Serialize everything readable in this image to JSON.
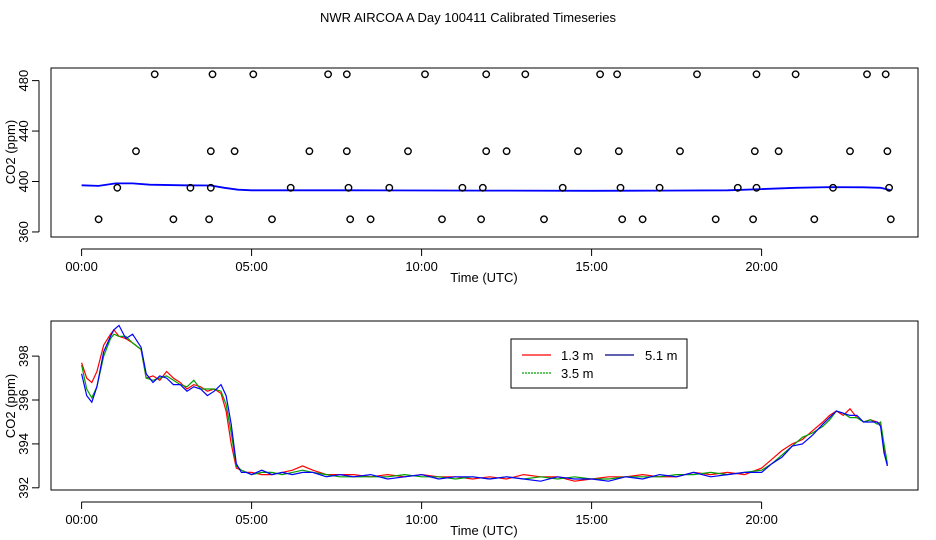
{
  "title": "NWR AIRCOA A  Day 100411  Calibrated Timeseries",
  "chart_data": [
    {
      "type": "scatter",
      "xlabel": "Time (UTC)",
      "ylabel": "CO2 (ppm)",
      "xlim": [
        -0.9,
        24.6
      ],
      "ylim": [
        356,
        490
      ],
      "x_ticks": [
        0,
        5,
        10,
        15,
        20
      ],
      "x_tick_labels": [
        "00:00",
        "05:00",
        "10:00",
        "15:00",
        "20:00"
      ],
      "y_ticks": [
        360,
        400,
        440,
        480
      ],
      "y_tick_labels": [
        "360",
        "400",
        "440",
        "480"
      ],
      "points": [
        {
          "x": 2.15,
          "y": 485
        },
        {
          "x": 3.85,
          "y": 485
        },
        {
          "x": 5.05,
          "y": 485
        },
        {
          "x": 7.25,
          "y": 485
        },
        {
          "x": 7.8,
          "y": 485
        },
        {
          "x": 10.1,
          "y": 485
        },
        {
          "x": 11.9,
          "y": 485
        },
        {
          "x": 13.05,
          "y": 485
        },
        {
          "x": 15.25,
          "y": 485
        },
        {
          "x": 15.75,
          "y": 485
        },
        {
          "x": 18.1,
          "y": 485
        },
        {
          "x": 19.85,
          "y": 485
        },
        {
          "x": 21.0,
          "y": 485
        },
        {
          "x": 23.1,
          "y": 485
        },
        {
          "x": 23.65,
          "y": 485
        },
        {
          "x": 1.6,
          "y": 424
        },
        {
          "x": 3.8,
          "y": 424
        },
        {
          "x": 4.5,
          "y": 424
        },
        {
          "x": 6.7,
          "y": 424
        },
        {
          "x": 7.8,
          "y": 424
        },
        {
          "x": 9.6,
          "y": 424
        },
        {
          "x": 11.9,
          "y": 424
        },
        {
          "x": 12.5,
          "y": 424
        },
        {
          "x": 14.6,
          "y": 424
        },
        {
          "x": 15.8,
          "y": 424
        },
        {
          "x": 17.6,
          "y": 424
        },
        {
          "x": 19.8,
          "y": 424
        },
        {
          "x": 20.5,
          "y": 424
        },
        {
          "x": 22.6,
          "y": 424
        },
        {
          "x": 23.7,
          "y": 424
        },
        {
          "x": 1.05,
          "y": 395
        },
        {
          "x": 3.2,
          "y": 395
        },
        {
          "x": 3.8,
          "y": 395
        },
        {
          "x": 6.15,
          "y": 395
        },
        {
          "x": 7.85,
          "y": 395
        },
        {
          "x": 9.05,
          "y": 395
        },
        {
          "x": 11.2,
          "y": 395
        },
        {
          "x": 11.8,
          "y": 395
        },
        {
          "x": 14.15,
          "y": 395
        },
        {
          "x": 15.85,
          "y": 395
        },
        {
          "x": 17.0,
          "y": 395
        },
        {
          "x": 19.3,
          "y": 395
        },
        {
          "x": 19.85,
          "y": 395
        },
        {
          "x": 22.1,
          "y": 395
        },
        {
          "x": 23.75,
          "y": 395
        },
        {
          "x": 0.5,
          "y": 370
        },
        {
          "x": 2.7,
          "y": 370
        },
        {
          "x": 3.75,
          "y": 370
        },
        {
          "x": 5.6,
          "y": 370
        },
        {
          "x": 7.9,
          "y": 370
        },
        {
          "x": 8.5,
          "y": 370
        },
        {
          "x": 10.6,
          "y": 370
        },
        {
          "x": 11.75,
          "y": 370
        },
        {
          "x": 13.6,
          "y": 370
        },
        {
          "x": 15.9,
          "y": 370
        },
        {
          "x": 16.5,
          "y": 370
        },
        {
          "x": 18.65,
          "y": 370
        },
        {
          "x": 19.75,
          "y": 370
        },
        {
          "x": 21.55,
          "y": 370
        },
        {
          "x": 23.8,
          "y": 370
        }
      ],
      "line": {
        "color": "#0000ff",
        "x": [
          0,
          0.5,
          1,
          1.5,
          2,
          3,
          3.8,
          4.2,
          4.6,
          5,
          8,
          12,
          15,
          17,
          19,
          20,
          21,
          22,
          23,
          23.5,
          23.8
        ],
        "y": [
          397,
          396.5,
          398.5,
          398.5,
          397.5,
          397,
          396.8,
          395,
          393.5,
          393,
          393,
          392.8,
          392.6,
          392.8,
          393,
          394,
          395,
          395.6,
          395.4,
          395,
          393
        ]
      }
    },
    {
      "type": "line",
      "xlabel": "Time (UTC)",
      "ylabel": "CO2 (ppm)",
      "xlim": [
        -0.9,
        24.6
      ],
      "ylim": [
        391.9,
        399.6
      ],
      "x_ticks": [
        0,
        5,
        10,
        15,
        20
      ],
      "x_tick_labels": [
        "00:00",
        "05:00",
        "10:00",
        "15:00",
        "20:00"
      ],
      "y_ticks": [
        392,
        394,
        396,
        398
      ],
      "y_tick_labels": [
        "392",
        "394",
        "396",
        "398"
      ],
      "legend": {
        "position": "top-center",
        "entries": [
          {
            "label": "1.3 m",
            "color": "#ff0000"
          },
          {
            "label": "3.5 m",
            "color": "#00a000"
          },
          {
            "label": "5.1 m",
            "color": "#0000ff"
          }
        ]
      },
      "x": [
        0.0,
        0.15,
        0.3,
        0.45,
        0.65,
        0.85,
        0.95,
        1.1,
        1.3,
        1.5,
        1.75,
        1.9,
        2.1,
        2.3,
        2.5,
        2.7,
        2.9,
        3.1,
        3.3,
        3.5,
        3.7,
        3.9,
        4.1,
        4.25,
        4.4,
        4.55,
        4.7,
        4.85,
        5.0,
        5.3,
        5.6,
        5.9,
        6.2,
        6.5,
        6.8,
        7.2,
        7.6,
        8.0,
        8.5,
        9.0,
        9.5,
        10.0,
        10.5,
        11.0,
        11.5,
        12.0,
        12.5,
        13.0,
        13.5,
        14.0,
        14.5,
        15.0,
        15.5,
        16.0,
        16.5,
        17.0,
        17.5,
        18.0,
        18.5,
        19.0,
        19.5,
        20.0,
        20.3,
        20.6,
        20.9,
        21.2,
        21.5,
        21.8,
        22.0,
        22.2,
        22.4,
        22.6,
        22.8,
        23.0,
        23.2,
        23.4,
        23.5,
        23.6,
        23.7
      ],
      "series": [
        {
          "name": "1.3 m",
          "color": "#ff0000",
          "values": [
            397.7,
            397.0,
            396.8,
            397.3,
            398.5,
            399.0,
            399.2,
            398.9,
            398.8,
            398.6,
            398.3,
            397.0,
            397.1,
            396.9,
            397.3,
            397.0,
            396.8,
            396.5,
            396.7,
            396.6,
            396.4,
            396.5,
            396.3,
            395.5,
            394.0,
            392.9,
            392.8,
            392.7,
            392.7,
            392.6,
            392.6,
            392.7,
            392.8,
            393.0,
            392.8,
            392.6,
            392.6,
            392.6,
            392.5,
            392.6,
            392.5,
            392.6,
            392.5,
            392.5,
            392.4,
            392.5,
            392.4,
            392.6,
            392.5,
            392.5,
            392.3,
            392.4,
            392.5,
            392.5,
            392.6,
            392.5,
            392.5,
            392.7,
            392.6,
            392.7,
            392.6,
            392.9,
            393.3,
            393.7,
            394.0,
            394.2,
            394.6,
            395.0,
            395.3,
            395.5,
            395.3,
            395.6,
            395.2,
            395.0,
            395.1,
            395.0,
            394.9,
            393.8,
            393.0
          ]
        },
        {
          "name": "3.5 m",
          "color": "#00a000",
          "values": [
            397.6,
            396.5,
            396.1,
            396.6,
            398.0,
            398.8,
            399.0,
            398.9,
            398.9,
            398.6,
            398.3,
            397.0,
            396.9,
            397.0,
            397.1,
            396.9,
            396.7,
            396.6,
            396.9,
            396.5,
            396.5,
            396.5,
            396.4,
            395.8,
            394.5,
            393.0,
            392.8,
            392.7,
            392.6,
            392.7,
            392.7,
            392.6,
            392.7,
            392.8,
            392.7,
            392.6,
            392.5,
            392.5,
            392.5,
            392.5,
            392.6,
            392.5,
            392.5,
            392.4,
            392.5,
            392.4,
            392.5,
            392.4,
            392.5,
            392.4,
            392.5,
            392.4,
            392.4,
            392.5,
            392.5,
            392.5,
            392.6,
            392.6,
            392.7,
            392.6,
            392.7,
            392.8,
            393.1,
            393.5,
            393.9,
            394.3,
            394.5,
            394.8,
            395.1,
            395.5,
            395.4,
            395.2,
            395.2,
            395.0,
            395.1,
            394.9,
            395.0,
            394.0,
            393.1
          ]
        },
        {
          "name": "5.1 m",
          "color": "#0000ff",
          "values": [
            397.2,
            396.2,
            395.9,
            396.6,
            398.2,
            398.9,
            399.2,
            399.4,
            398.8,
            399.0,
            398.4,
            397.2,
            396.8,
            397.1,
            397.0,
            396.7,
            396.7,
            396.4,
            396.6,
            396.5,
            396.2,
            396.4,
            396.7,
            396.2,
            394.9,
            393.1,
            392.7,
            392.7,
            392.6,
            392.8,
            392.6,
            392.7,
            392.6,
            392.7,
            392.7,
            392.5,
            392.6,
            392.5,
            392.6,
            392.4,
            392.5,
            392.6,
            392.4,
            392.5,
            392.5,
            392.4,
            392.5,
            392.4,
            392.3,
            392.5,
            392.4,
            392.4,
            392.3,
            392.5,
            392.4,
            392.6,
            392.5,
            392.7,
            392.5,
            392.6,
            392.7,
            392.7,
            393.1,
            393.4,
            393.9,
            394.0,
            394.4,
            394.9,
            395.2,
            395.5,
            395.4,
            395.3,
            395.3,
            395.0,
            395.0,
            395.0,
            394.8,
            393.6,
            393.0
          ]
        }
      ]
    }
  ]
}
